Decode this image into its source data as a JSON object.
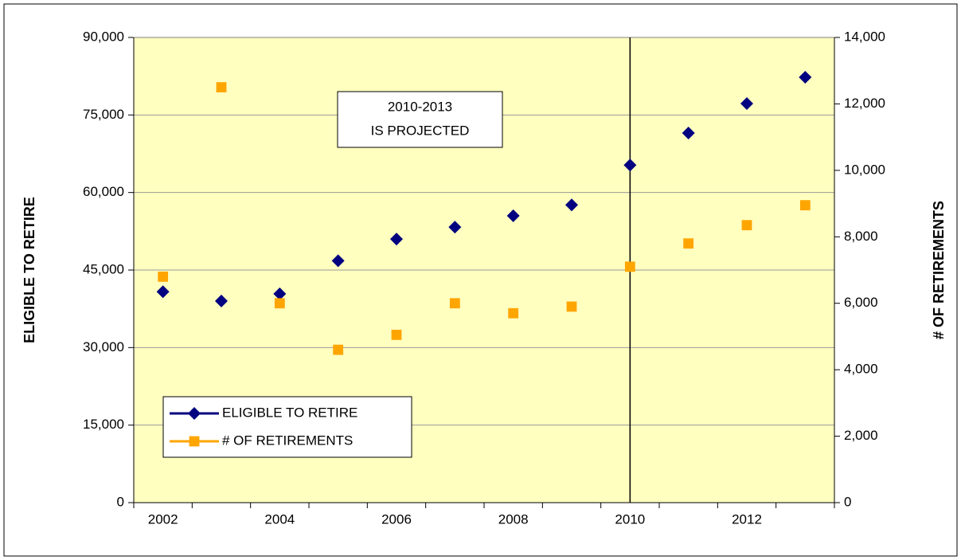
{
  "chart_data": {
    "type": "line",
    "categories": [
      "2002",
      null,
      "2004",
      null,
      "2006",
      null,
      "2008",
      null,
      "2010",
      null,
      "2012",
      null
    ],
    "series": [
      {
        "name": "ELIGIBLE TO RETIRE",
        "color": "#000080",
        "marker": "diamond",
        "values": [
          40800,
          39000,
          40400,
          46800,
          51000,
          53300,
          55500,
          57600,
          65300,
          71500,
          77200,
          82300
        ]
      },
      {
        "name": "# OF RETIREMENTS",
        "color": "#ffa500",
        "marker": "square",
        "axis": "y2",
        "values": [
          6800,
          12500,
          6000,
          4600,
          5050,
          6000,
          5700,
          5900,
          7100,
          7800,
          8350,
          8950
        ]
      }
    ],
    "ylabel": "ELIGIBLE TO RETIRE",
    "y2label": "# OF RETIREMENTS",
    "ylim": [
      0,
      90000
    ],
    "yticks": [
      0,
      {
        "value": 15000,
        "label": "15,000"
      },
      {
        "value": 30000,
        "label": "30,000"
      },
      {
        "value": 45000,
        "label": "45,000"
      },
      {
        "value": 60000,
        "label": "60,000"
      },
      {
        "value": 75000,
        "label": "75,000"
      },
      {
        "value": 90000,
        "label": "90,000"
      }
    ],
    "y2lim": [
      0,
      14000
    ],
    "y2ticks": [
      0,
      {
        "value": 2000,
        "label": "2,000"
      },
      {
        "value": 4000,
        "label": "4,000"
      },
      {
        "value": 6000,
        "label": "6,000"
      },
      {
        "value": 8000,
        "label": "8,000"
      },
      {
        "value": 10000,
        "label": "10,000"
      },
      {
        "value": 12000,
        "label": "12,000"
      },
      {
        "value": 14000,
        "label": "14,000"
      }
    ],
    "grid": true,
    "background": "#ffffc0",
    "vline_category": "2010",
    "annotation": [
      "2010-2013",
      "IS PROJECTED"
    ],
    "legend": "lower left"
  }
}
